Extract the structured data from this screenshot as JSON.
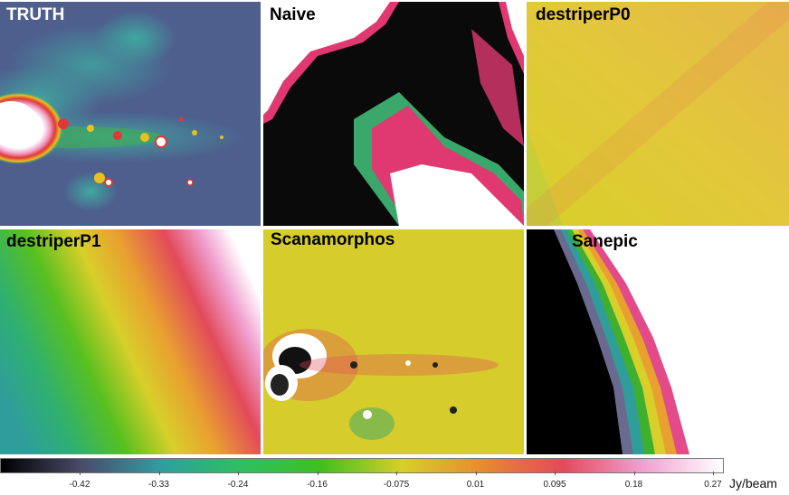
{
  "panels": [
    {
      "label": "TRUTH"
    },
    {
      "label": "Naive"
    },
    {
      "label": "destriperP0"
    },
    {
      "label": "destriperP1"
    },
    {
      "label": "Scanamorphos"
    },
    {
      "label": "Sanepic"
    }
  ],
  "colorbar": {
    "ticks": [
      "-0.42",
      "-0.33",
      "-0.24",
      "-0.16",
      "-0.075",
      "0.01",
      "0.095",
      "0.18",
      "0.27"
    ],
    "unit": "Jy/beam",
    "colors": [
      "#000000",
      "#4a4a6a",
      "#2f9ea0",
      "#2fbf60",
      "#3fbf20",
      "#d8cf2a",
      "#e88a30",
      "#e24a5a",
      "#f0a0d0",
      "#ffffff"
    ]
  }
}
